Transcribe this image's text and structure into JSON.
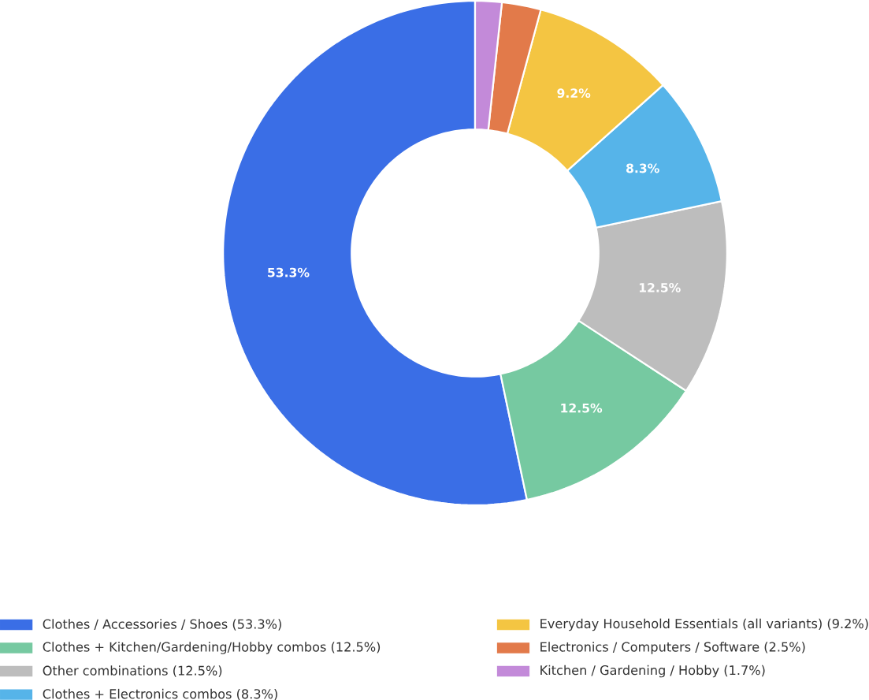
{
  "chart_data": {
    "type": "donut",
    "categories": [
      "Clothes / Accessories / Shoes  (53.3%)",
      "Clothes + Kitchen/Gardening/Hobby combos  (12.5%)",
      "Other combinations  (12.5%)",
      "Clothes + Electronics combos  (8.3%)",
      "Everyday Household Essentials (all variants)  (9.2%)",
      "Electronics / Computers / Software  (2.5%)",
      "Kitchen / Gardening / Hobby  (1.7%)"
    ],
    "values": [
      53.3,
      12.5,
      12.5,
      8.3,
      9.2,
      2.5,
      1.7
    ],
    "colors": [
      "#3a6ee6",
      "#76c9a1",
      "#bdbdbd",
      "#56b4e9",
      "#f4c542",
      "#e27a4a",
      "#c38ad9"
    ],
    "value_labels": [
      "53.3%",
      "12.5%",
      "12.5%",
      "8.3%",
      "9.2%",
      null,
      null
    ],
    "legend": "bottom"
  }
}
